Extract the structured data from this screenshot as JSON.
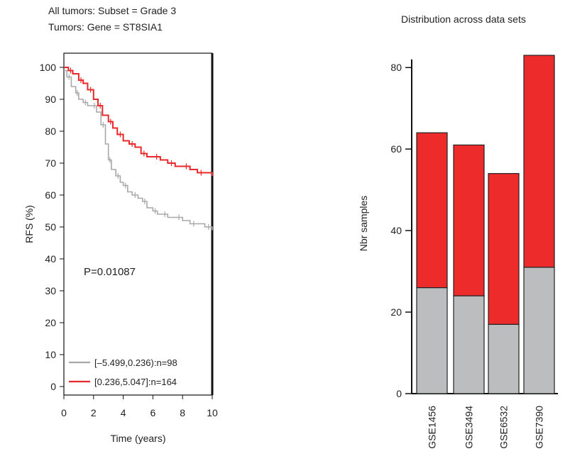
{
  "chart_data": [
    {
      "type": "line",
      "subtitle_lines": [
        "All tumors: Subset = Grade 3",
        "Tumors: Gene = ST8SIA1"
      ],
      "xlabel": "Time (years)",
      "ylabel": "RFS (%)",
      "xlim": [
        0,
        10
      ],
      "ylim": [
        0,
        100
      ],
      "xticks": [
        0,
        2,
        4,
        6,
        8,
        10
      ],
      "yticks": [
        0,
        10,
        20,
        30,
        40,
        50,
        60,
        70,
        80,
        90,
        100
      ],
      "annotation": "P=0.01087",
      "legend_position": "bottom-left",
      "series": [
        {
          "name": "[–5.499,0.236):n=98",
          "color": "#a8a8a8",
          "x": [
            0,
            0.2,
            0.5,
            0.8,
            1.0,
            1.3,
            1.6,
            1.9,
            2.2,
            2.5,
            2.8,
            3.0,
            3.2,
            3.5,
            3.8,
            4.0,
            4.3,
            4.6,
            5.0,
            5.3,
            5.6,
            6.0,
            6.3,
            6.6,
            7.0,
            7.5,
            8.0,
            8.5,
            9.0,
            9.5,
            10.0
          ],
          "y": [
            99,
            97,
            94,
            92,
            90,
            89,
            88,
            88,
            86,
            82,
            76,
            71,
            68,
            66,
            64,
            63,
            61,
            60,
            59,
            58,
            56,
            55,
            54,
            54,
            53,
            53,
            52,
            51,
            51,
            50,
            49
          ]
        },
        {
          "name": "[0.236,5.047]:n=164",
          "color": "#e8282b",
          "x": [
            0,
            0.3,
            0.6,
            1.0,
            1.3,
            1.6,
            2.0,
            2.3,
            2.6,
            3.0,
            3.3,
            3.6,
            4.0,
            4.4,
            4.8,
            5.2,
            5.6,
            6.0,
            6.5,
            7.0,
            7.5,
            8.0,
            8.5,
            9.0,
            9.5,
            10.0
          ],
          "y": [
            100,
            99,
            98,
            96,
            95,
            93,
            90,
            88,
            85,
            83,
            81,
            79,
            77,
            76,
            75,
            73,
            72,
            72,
            71,
            70,
            69,
            69,
            68,
            67,
            67,
            66
          ]
        }
      ]
    },
    {
      "type": "bar",
      "title": "Distribution across data sets",
      "ylabel": "Nbr samples",
      "ylim": [
        0,
        83
      ],
      "yticks": [
        0,
        20,
        40,
        60,
        80
      ],
      "categories": [
        "GSE1456",
        "GSE3494",
        "GSE6532",
        "GSE7390"
      ],
      "stacked": true,
      "series": [
        {
          "color": "#bcbdbf",
          "values": [
            26,
            24,
            17,
            31
          ]
        },
        {
          "color": "#ee2b2b",
          "values": [
            38,
            37,
            37,
            52
          ]
        }
      ]
    }
  ]
}
